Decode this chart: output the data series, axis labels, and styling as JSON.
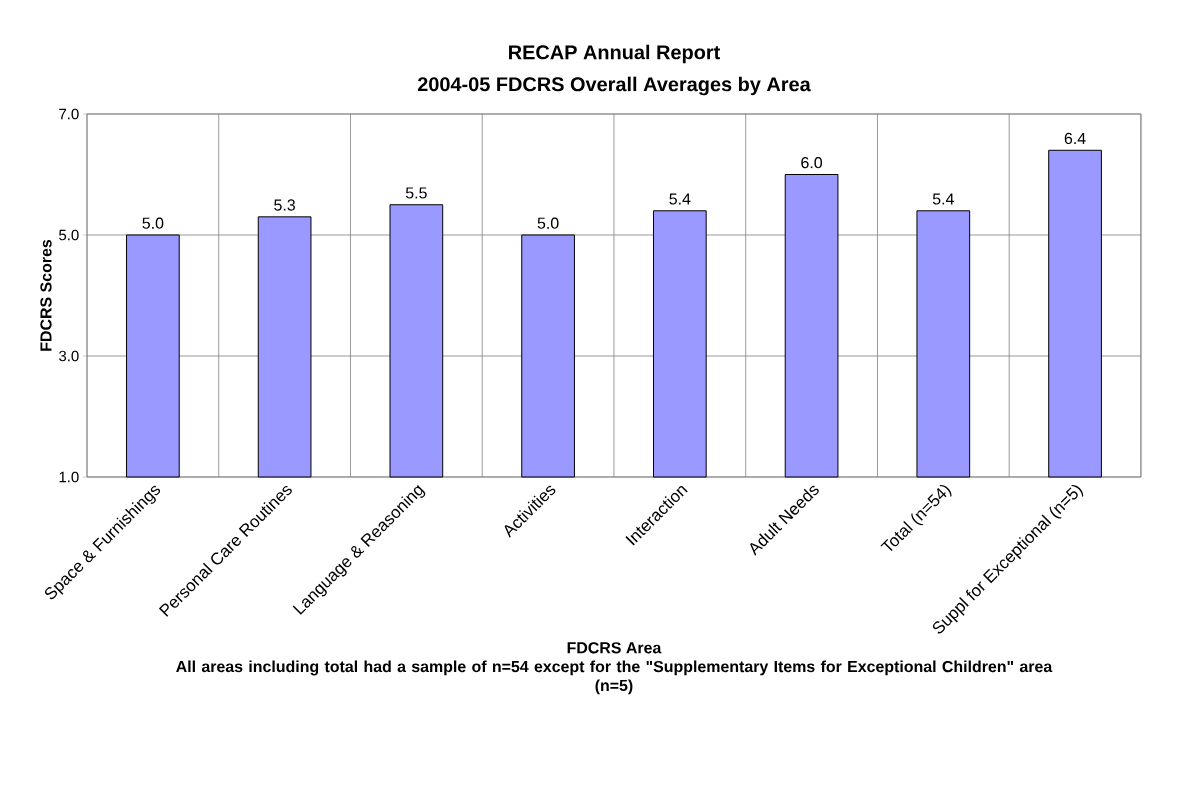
{
  "chart_data": {
    "type": "bar",
    "title": "RECAP Annual Report",
    "subtitle": "2004-05 FDCRS Overall Averages by Area",
    "xlabel": "FDCRS Area",
    "ylabel": "FDCRS Scores",
    "annotations": [
      "All areas including total had a sample of n=54 except for the \"Supplementary Items for Exceptional Children\" area (n=5)"
    ],
    "categories": [
      "Space & Furnishings",
      "Personal Care Routines",
      "Language & Reasoning",
      "Activities",
      "Interaction",
      "Adult Needs",
      "Total (n=54)",
      "Suppl for Exceptional (n=5)"
    ],
    "values": [
      5.0,
      5.3,
      5.5,
      5.0,
      5.4,
      6.0,
      5.4,
      6.4
    ],
    "value_labels": [
      "5.0",
      "5.3",
      "5.5",
      "5.0",
      "5.4",
      "6.0",
      "5.4",
      "6.4"
    ],
    "color": "#9999ff",
    "ylim": [
      1,
      7
    ],
    "yticks": [
      {
        "value": 1,
        "label": "1.0"
      },
      {
        "value": 3,
        "label": "3.0"
      },
      {
        "value": 5,
        "label": "5.0"
      },
      {
        "value": 7,
        "label": "7.0"
      }
    ],
    "grid": true
  }
}
